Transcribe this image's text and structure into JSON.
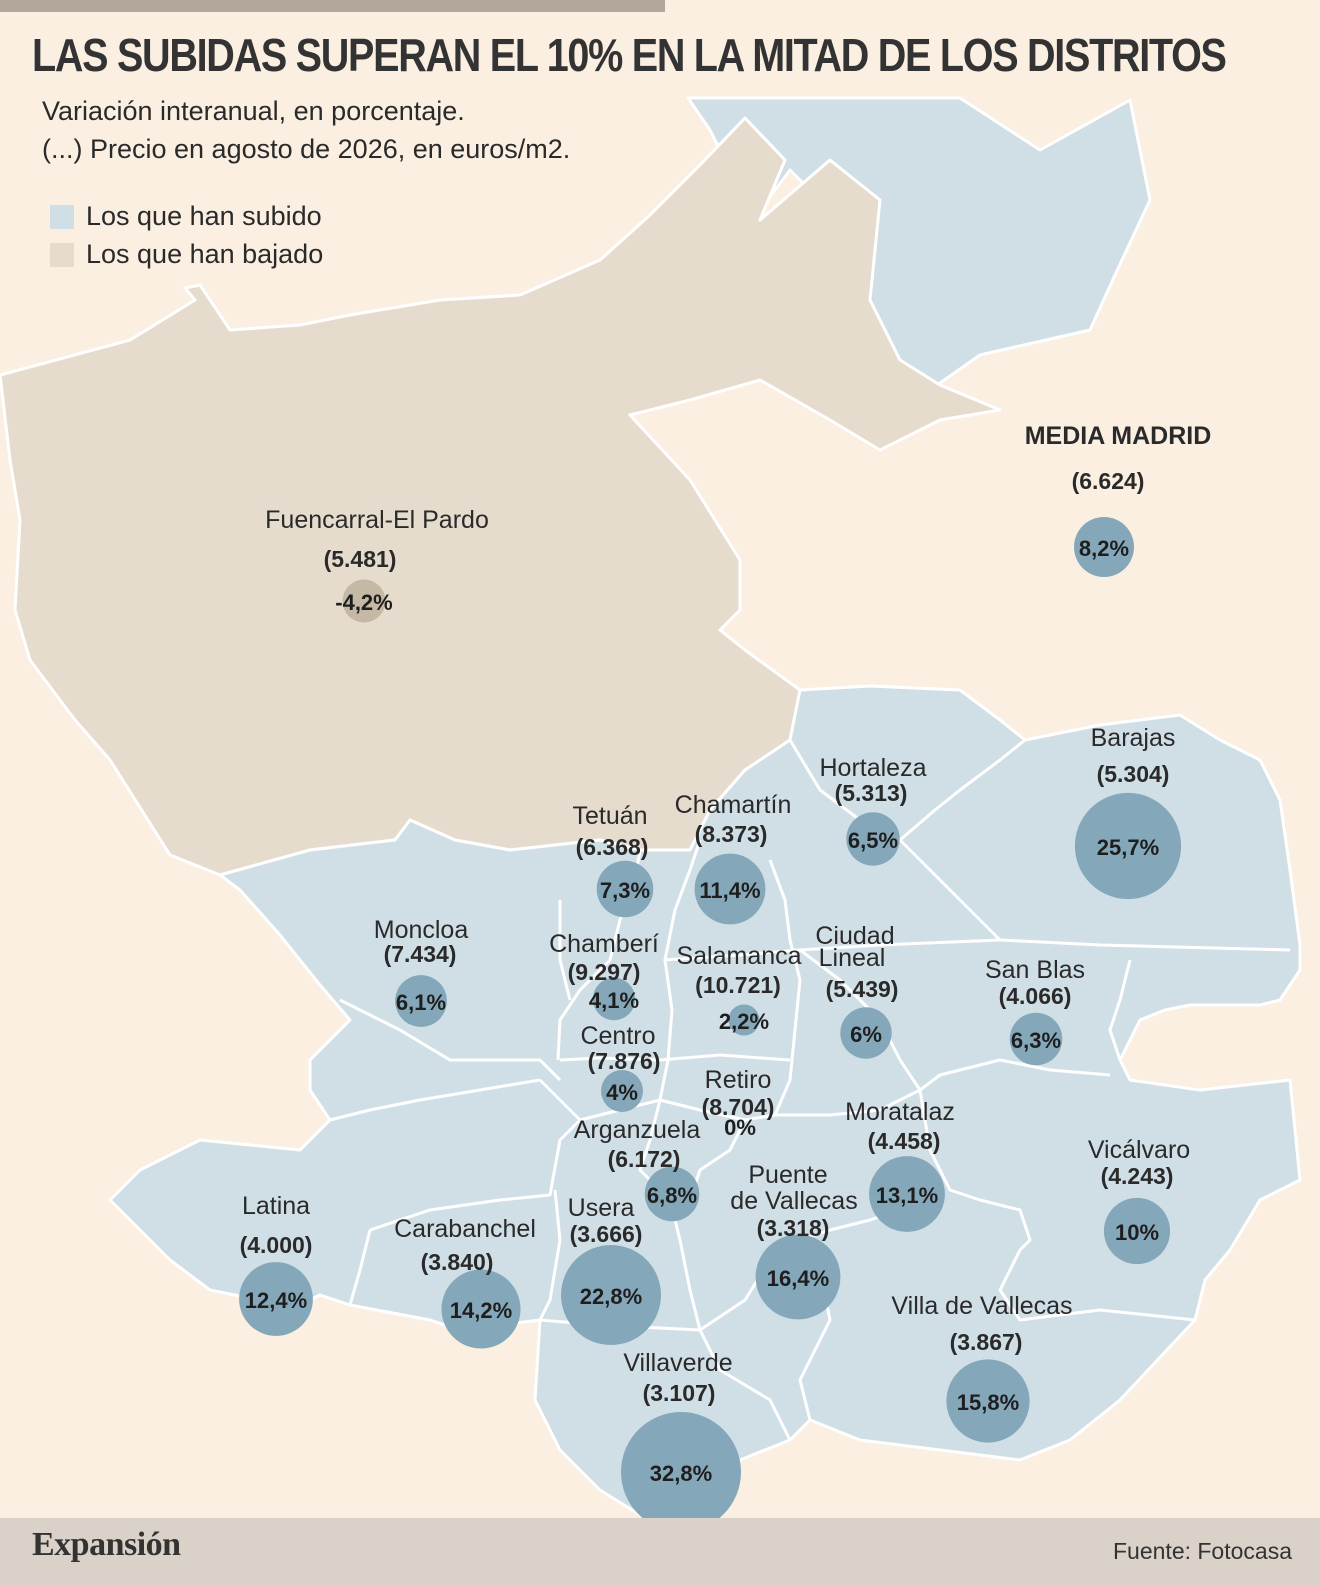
{
  "title": "LAS SUBIDAS SUPERAN EL 10% EN LA MITAD DE LOS DISTRITOS",
  "subtitle_line1": "Variación interanual, en porcentaje.",
  "subtitle_line2": "(...) Precio en agosto de 2026, en euros/m2.",
  "legend": {
    "up_label": "Los que han subido",
    "down_label": "Los que han bajado"
  },
  "colors": {
    "up_area": "#d0dfe6",
    "down_area": "#e6dccd",
    "up_bubble": "#84a8b9",
    "down_bubble": "#c5b8a4",
    "background": "#fbefe2"
  },
  "average": {
    "name": "MEDIA MADRID",
    "price": "(6.624)",
    "pct": "8,2%",
    "value": 8.2
  },
  "districts": [
    {
      "key": "fuencarral",
      "name": "Fuencarral-El Pardo",
      "price": "(5.481)",
      "pct": "-4,2%",
      "value": -4.2,
      "direction": "down"
    },
    {
      "key": "barajas",
      "name": "Barajas",
      "price": "(5.304)",
      "pct": "25,7%",
      "value": 25.7,
      "direction": "up"
    },
    {
      "key": "hortaleza",
      "name": "Hortaleza",
      "price": "(5.313)",
      "pct": "6,5%",
      "value": 6.5,
      "direction": "up"
    },
    {
      "key": "tetuan",
      "name": "Tetuán",
      "price": "(6.368)",
      "pct": "7,3%",
      "value": 7.3,
      "direction": "up"
    },
    {
      "key": "chamartin",
      "name": "Chamartín",
      "price": "(8.373)",
      "pct": "11,4%",
      "value": 11.4,
      "direction": "up"
    },
    {
      "key": "moncloa",
      "name": "Moncloa",
      "price": "(7.434)",
      "pct": "6,1%",
      "value": 6.1,
      "direction": "up"
    },
    {
      "key": "chamberi",
      "name": "Chamberí",
      "price": "(9.297)",
      "pct": "4,1%",
      "value": 4.1,
      "direction": "up"
    },
    {
      "key": "salamanca",
      "name": "Salamanca",
      "price": "(10.721)",
      "pct": "2,2%",
      "value": 2.2,
      "direction": "up"
    },
    {
      "key": "ciudadlineal",
      "name_line1": "Ciudad",
      "name_line2": "Lineal",
      "price": "(5.439)",
      "pct": "6%",
      "value": 6,
      "direction": "up"
    },
    {
      "key": "sanblas",
      "name": "San Blas",
      "price": "(4.066)",
      "pct": "6,3%",
      "value": 6.3,
      "direction": "up"
    },
    {
      "key": "centro",
      "name": "Centro",
      "price": "(7.876)",
      "pct": "4%",
      "value": 4,
      "direction": "up"
    },
    {
      "key": "retiro",
      "name": "Retiro",
      "price": "(8.704)",
      "pct": "0%",
      "value": 0,
      "direction": "up"
    },
    {
      "key": "moratalaz",
      "name": "Moratalaz",
      "price": "(4.458)",
      "pct": "13,1%",
      "value": 13.1,
      "direction": "up"
    },
    {
      "key": "arganzuela",
      "name": "Arganzuela",
      "price": "(6.172)",
      "pct": "6,8%",
      "value": 6.8,
      "direction": "up"
    },
    {
      "key": "vicalvaro",
      "name": "Vicálvaro",
      "price": "(4.243)",
      "pct": "10%",
      "value": 10,
      "direction": "up"
    },
    {
      "key": "puentevallecas",
      "name_line1": "Puente",
      "name_line2": "de Vallecas",
      "price": "(3.318)",
      "pct": "16,4%",
      "value": 16.4,
      "direction": "up"
    },
    {
      "key": "latina",
      "name": "Latina",
      "price": "(4.000)",
      "pct": "12,4%",
      "value": 12.4,
      "direction": "up"
    },
    {
      "key": "carabanchel",
      "name": "Carabanchel",
      "price": "(3.840)",
      "pct": "14,2%",
      "value": 14.2,
      "direction": "up"
    },
    {
      "key": "usera",
      "name": "Usera",
      "price": "(3.666)",
      "pct": "22,8%",
      "value": 22.8,
      "direction": "up"
    },
    {
      "key": "villavallecas",
      "name": "Villa de Vallecas",
      "price": "(3.867)",
      "pct": "15,8%",
      "value": 15.8,
      "direction": "up"
    },
    {
      "key": "villaverde",
      "name": "Villaverde",
      "price": "(3.107)",
      "pct": "32,8%",
      "value": 32.8,
      "direction": "up"
    }
  ],
  "footer": {
    "brand": "Expansión",
    "source": "Fuente: Fotocasa"
  }
}
